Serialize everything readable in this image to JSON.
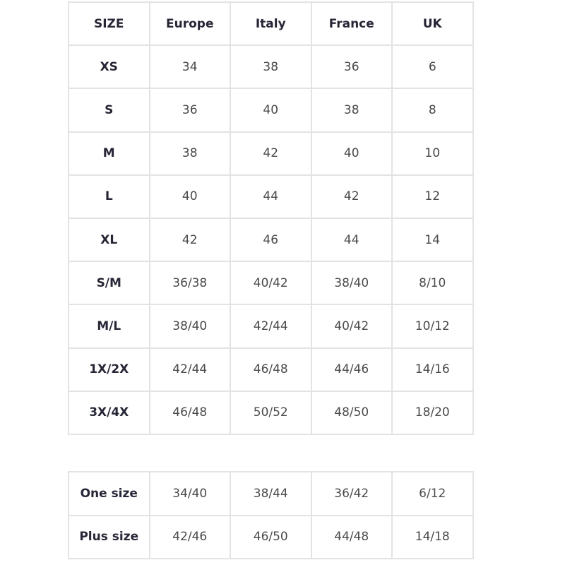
{
  "main_table": {
    "headers": [
      "SIZE",
      "Europe",
      "Italy",
      "France",
      "UK"
    ],
    "rows": [
      [
        "XS",
        "34",
        "38",
        "36",
        "6"
      ],
      [
        "S",
        "36",
        "40",
        "38",
        "8"
      ],
      [
        "M",
        "38",
        "42",
        "40",
        "10"
      ],
      [
        "L",
        "40",
        "44",
        "42",
        "12"
      ],
      [
        "XL",
        "42",
        "46",
        "44",
        "14"
      ],
      [
        "S/M",
        "36/38",
        "40/42",
        "38/40",
        "8/10"
      ],
      [
        "M/L",
        "38/40",
        "42/44",
        "40/42",
        "10/12"
      ],
      [
        "1X/2X",
        "42/44",
        "46/48",
        "44/46",
        "14/16"
      ],
      [
        "3X/4X",
        "46/48",
        "50/52",
        "48/50",
        "18/20"
      ]
    ]
  },
  "extra_table": {
    "rows": [
      [
        "One size",
        "34/40",
        "38/44",
        "36/42",
        "6/12"
      ],
      [
        "Plus size",
        "42/46",
        "46/50",
        "44/48",
        "14/18"
      ]
    ]
  },
  "colors": {
    "border": "#e3e3e3",
    "header_text": "#262636",
    "cell_text": "#4a4a4a"
  }
}
